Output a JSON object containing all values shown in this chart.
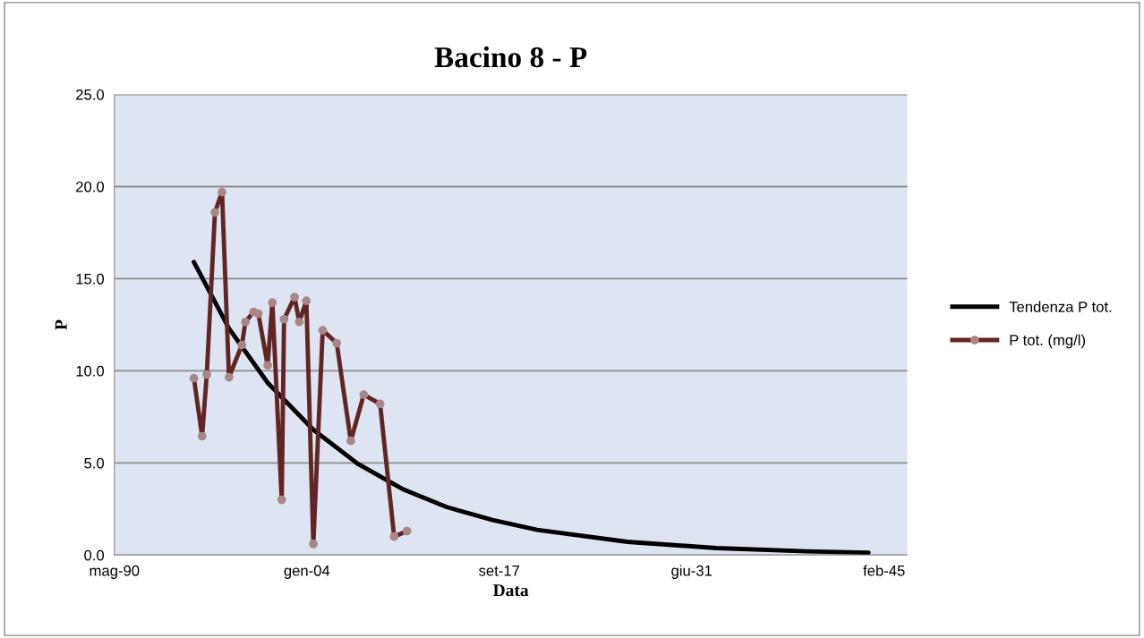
{
  "chart_data": {
    "type": "line",
    "title": "Bacino 8 - P",
    "xlabel": "Data",
    "ylabel": "P",
    "xlim": [
      "1990-05-06",
      "2046-10-01"
    ],
    "xticks": [
      {
        "value": "1990-05-06",
        "label": "mag-90"
      },
      {
        "value": "2004-01-14",
        "label": "gen-04"
      },
      {
        "value": "2017-09-22",
        "label": "set-17"
      },
      {
        "value": "2031-06-01",
        "label": "giu-31"
      },
      {
        "value": "2045-02-08",
        "label": "feb-45"
      }
    ],
    "ylim": [
      0,
      25
    ],
    "yticks": [
      {
        "value": 0,
        "label": "0.0"
      },
      {
        "value": 5,
        "label": "5.0"
      },
      {
        "value": 10,
        "label": "10.0"
      },
      {
        "value": 15,
        "label": "15.0"
      },
      {
        "value": 20,
        "label": "20.0"
      },
      {
        "value": 25,
        "label": "25.0"
      }
    ],
    "grid": "y",
    "legend": "right",
    "series": [
      {
        "name": "Tendenza P tot.",
        "color": "#000000",
        "marker": "none",
        "x": [
          "1996-01",
          "1998-07",
          "2001-04",
          "2004-07",
          "2007-09",
          "2010-11",
          "2014-01",
          "2017-04",
          "2020-06",
          "2026-11",
          "2033-03",
          "2039-08",
          "2044-01"
        ],
        "values": [
          15.9,
          12.3,
          9.35,
          6.8,
          4.95,
          3.59,
          2.6,
          1.9,
          1.37,
          0.72,
          0.38,
          0.2,
          0.13
        ]
      },
      {
        "name": "P tot. (mg/l)",
        "color": "#632523",
        "marker": "circle",
        "x": [
          "1996-01",
          "1996-08",
          "1996-12",
          "1997-07",
          "1998-01",
          "1998-07",
          "1999-06",
          "1999-09",
          "2000-04",
          "2000-08",
          "2001-04",
          "2001-08",
          "2002-04",
          "2002-06",
          "2003-03",
          "2003-07",
          "2004-01",
          "2004-07",
          "2005-03",
          "2006-03",
          "2007-03",
          "2008-02",
          "2009-04",
          "2010-04",
          "2011-03"
        ],
        "values": [
          9.6,
          6.45,
          9.8,
          18.6,
          19.7,
          9.65,
          11.4,
          12.65,
          13.2,
          13.1,
          10.3,
          13.7,
          3.0,
          12.8,
          14.0,
          12.65,
          13.8,
          0.6,
          12.2,
          11.5,
          6.2,
          8.7,
          8.2,
          1.0,
          1.3
        ]
      }
    ]
  }
}
